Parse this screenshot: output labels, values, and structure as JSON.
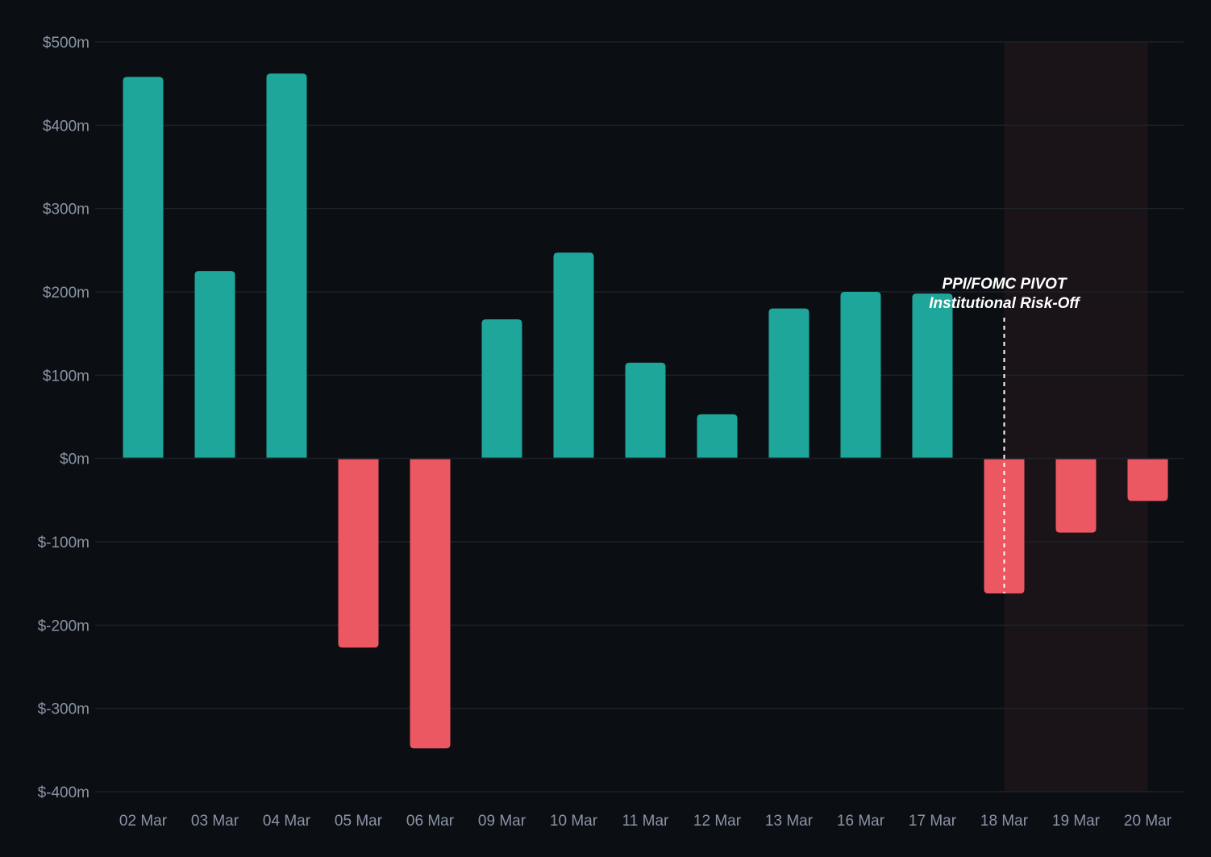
{
  "chart_data": {
    "type": "bar",
    "categories": [
      "02 Mar",
      "03 Mar",
      "04 Mar",
      "05 Mar",
      "06 Mar",
      "09 Mar",
      "10 Mar",
      "11 Mar",
      "12 Mar",
      "13 Mar",
      "16 Mar",
      "17 Mar",
      "18 Mar",
      "19 Mar",
      "20 Mar"
    ],
    "values": [
      458,
      225,
      462,
      -227,
      -348,
      167,
      247,
      115,
      53,
      180,
      200,
      198,
      -162,
      -89,
      -51
    ],
    "units": "$m",
    "ylim": [
      -400,
      500
    ],
    "yticks": [
      500,
      400,
      300,
      200,
      100,
      0,
      -100,
      -200,
      -300,
      -400
    ],
    "ytick_labels": [
      "$500m",
      "$400m",
      "$300m",
      "$200m",
      "$100m",
      "$0m",
      "$-100m",
      "$-200m",
      "$-300m",
      "$-400m"
    ],
    "grid": true,
    "title": "",
    "xlabel": "",
    "ylabel": "",
    "colors": {
      "positive": "#1fa69b",
      "negative": "#ec5862",
      "background": "#0b0e12",
      "grid": "#1d2229",
      "tick_text": "#8a94a6",
      "shade": "#1a1418",
      "annotation_text": "#ffffff",
      "annotation_line": "#ffffff"
    },
    "shaded_region": {
      "from": "18 Mar",
      "to": "20 Mar"
    },
    "annotation": {
      "at": "18 Mar",
      "lines": [
        "PPI/FOMC PIVOT",
        "Institutional Risk-Off"
      ]
    }
  }
}
